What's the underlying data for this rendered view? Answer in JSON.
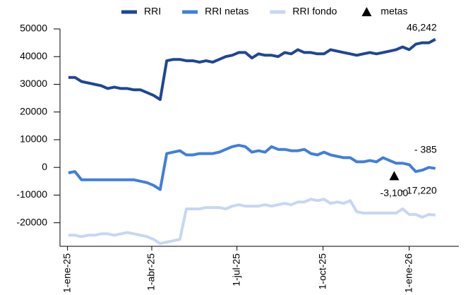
{
  "chart_data": {
    "type": "line",
    "x": [
      "2025-01-02",
      "2025-01-09",
      "2025-01-16",
      "2025-01-23",
      "2025-01-30",
      "2025-02-06",
      "2025-02-13",
      "2025-02-20",
      "2025-02-27",
      "2025-03-06",
      "2025-03-13",
      "2025-03-20",
      "2025-03-27",
      "2025-04-03",
      "2025-04-10",
      "2025-04-17",
      "2025-04-24",
      "2025-05-01",
      "2025-05-08",
      "2025-05-15",
      "2025-05-22",
      "2025-05-29",
      "2025-06-05",
      "2025-06-12",
      "2025-06-19",
      "2025-06-26",
      "2025-07-03",
      "2025-07-10",
      "2025-07-17",
      "2025-07-24",
      "2025-07-31",
      "2025-08-07",
      "2025-08-14",
      "2025-08-21",
      "2025-08-28",
      "2025-09-04",
      "2025-09-11",
      "2025-09-18",
      "2025-09-25",
      "2025-10-02",
      "2025-10-09",
      "2025-10-16",
      "2025-10-23",
      "2025-10-30",
      "2025-11-06",
      "2025-11-13",
      "2025-11-20",
      "2025-11-27",
      "2025-12-04",
      "2025-12-11",
      "2025-12-18",
      "2025-12-25",
      "2026-01-01",
      "2026-01-08",
      "2026-01-15",
      "2026-01-22",
      "2026-01-29"
    ],
    "series": [
      {
        "name": "RRI",
        "color": "#1f4694",
        "values": [
          32500,
          32500,
          31000,
          30500,
          30000,
          29500,
          28500,
          29000,
          28500,
          28500,
          28000,
          28000,
          27000,
          26000,
          24500,
          38500,
          39000,
          39000,
          38500,
          38500,
          38000,
          38500,
          38000,
          39000,
          40000,
          40500,
          41500,
          41500,
          39500,
          41000,
          40500,
          40500,
          40000,
          41500,
          41000,
          42500,
          41500,
          41500,
          41000,
          41000,
          42500,
          42000,
          41500,
          41000,
          40500,
          41000,
          41500,
          41000,
          41500,
          42000,
          42500,
          43500,
          42500,
          44500,
          45000,
          45000,
          46242
        ],
        "value_labels": [
          null,
          null,
          null,
          null,
          null,
          null,
          null,
          null,
          null,
          null,
          null,
          null,
          null,
          null,
          null,
          null,
          null,
          null,
          null,
          null,
          null,
          null,
          null,
          null,
          null,
          null,
          null,
          null,
          null,
          null,
          null,
          null,
          null,
          null,
          null,
          null,
          null,
          null,
          null,
          null,
          null,
          null,
          null,
          null,
          null,
          null,
          null,
          null,
          null,
          null,
          null,
          null,
          null,
          null,
          null,
          null,
          "46,242"
        ]
      },
      {
        "name": "RRI netas",
        "color": "#3f7fdc",
        "values": [
          -2000,
          -1500,
          -4500,
          -4500,
          -4500,
          -4500,
          -4500,
          -4500,
          -4500,
          -4500,
          -4500,
          -5000,
          -5500,
          -6500,
          -8000,
          5000,
          5500,
          6000,
          4500,
          4500,
          5000,
          5000,
          5000,
          5500,
          6500,
          7500,
          8000,
          7500,
          5500,
          6000,
          5500,
          7500,
          6500,
          6500,
          6000,
          6000,
          6500,
          5000,
          4500,
          5500,
          4500,
          4000,
          3500,
          3500,
          2000,
          2000,
          2500,
          2000,
          3500,
          2500,
          1500,
          1500,
          1000,
          -1500,
          -1000,
          0,
          -385
        ],
        "value_labels": [
          null,
          null,
          null,
          null,
          null,
          null,
          null,
          null,
          null,
          null,
          null,
          null,
          null,
          null,
          null,
          null,
          null,
          null,
          null,
          null,
          null,
          null,
          null,
          null,
          null,
          null,
          null,
          null,
          null,
          null,
          null,
          null,
          null,
          null,
          null,
          null,
          null,
          null,
          null,
          null,
          null,
          null,
          null,
          null,
          null,
          null,
          null,
          null,
          null,
          null,
          null,
          null,
          null,
          null,
          null,
          null,
          "- 385"
        ]
      },
      {
        "name": "RRI fondo",
        "color": "#c6d7f3",
        "values": [
          -24500,
          -24500,
          -25000,
          -24500,
          -24500,
          -24000,
          -24000,
          -24500,
          -24000,
          -23500,
          -24000,
          -24500,
          -25000,
          -26000,
          -27500,
          -27000,
          -26500,
          -26000,
          -15000,
          -15000,
          -15000,
          -14500,
          -14500,
          -14500,
          -15000,
          -14000,
          -13500,
          -14000,
          -14000,
          -14000,
          -13500,
          -14000,
          -13500,
          -13000,
          -13500,
          -12500,
          -12500,
          -11500,
          -12000,
          -11500,
          -13000,
          -12500,
          -13000,
          -12000,
          -16000,
          -16500,
          -16500,
          -16500,
          -16500,
          -16500,
          -16500,
          -15000,
          -17000,
          -17000,
          -18000,
          -17000,
          -17220
        ],
        "value_labels": [
          null,
          null,
          null,
          null,
          null,
          null,
          null,
          null,
          null,
          null,
          null,
          null,
          null,
          null,
          null,
          null,
          null,
          null,
          null,
          null,
          null,
          null,
          null,
          null,
          null,
          null,
          null,
          null,
          null,
          null,
          null,
          null,
          null,
          null,
          null,
          null,
          null,
          null,
          null,
          null,
          null,
          null,
          null,
          null,
          null,
          null,
          null,
          null,
          null,
          null,
          null,
          null,
          null,
          null,
          null,
          null,
          "- 17,220"
        ]
      }
    ],
    "points": {
      "name": "metas",
      "color": "#000000",
      "x": [
        "2025-12-16"
      ],
      "values": [
        -3100
      ],
      "value_labels": [
        "-3,100"
      ]
    },
    "xlim": [
      "2024-12-24",
      "2026-02-23"
    ],
    "xticks": [
      {
        "value": "2025-01-01",
        "label": "1-ene-25"
      },
      {
        "value": "2025-04-01",
        "label": "1-abr-25"
      },
      {
        "value": "2025-07-01",
        "label": "1-jul-25"
      },
      {
        "value": "2025-10-01",
        "label": "1-oct-25"
      },
      {
        "value": "2026-01-01",
        "label": "1-ene-26"
      }
    ],
    "ylim": [
      -28500,
      50000
    ],
    "yticks": [
      -20000,
      -10000,
      0,
      10000,
      20000,
      30000,
      40000,
      50000
    ]
  }
}
